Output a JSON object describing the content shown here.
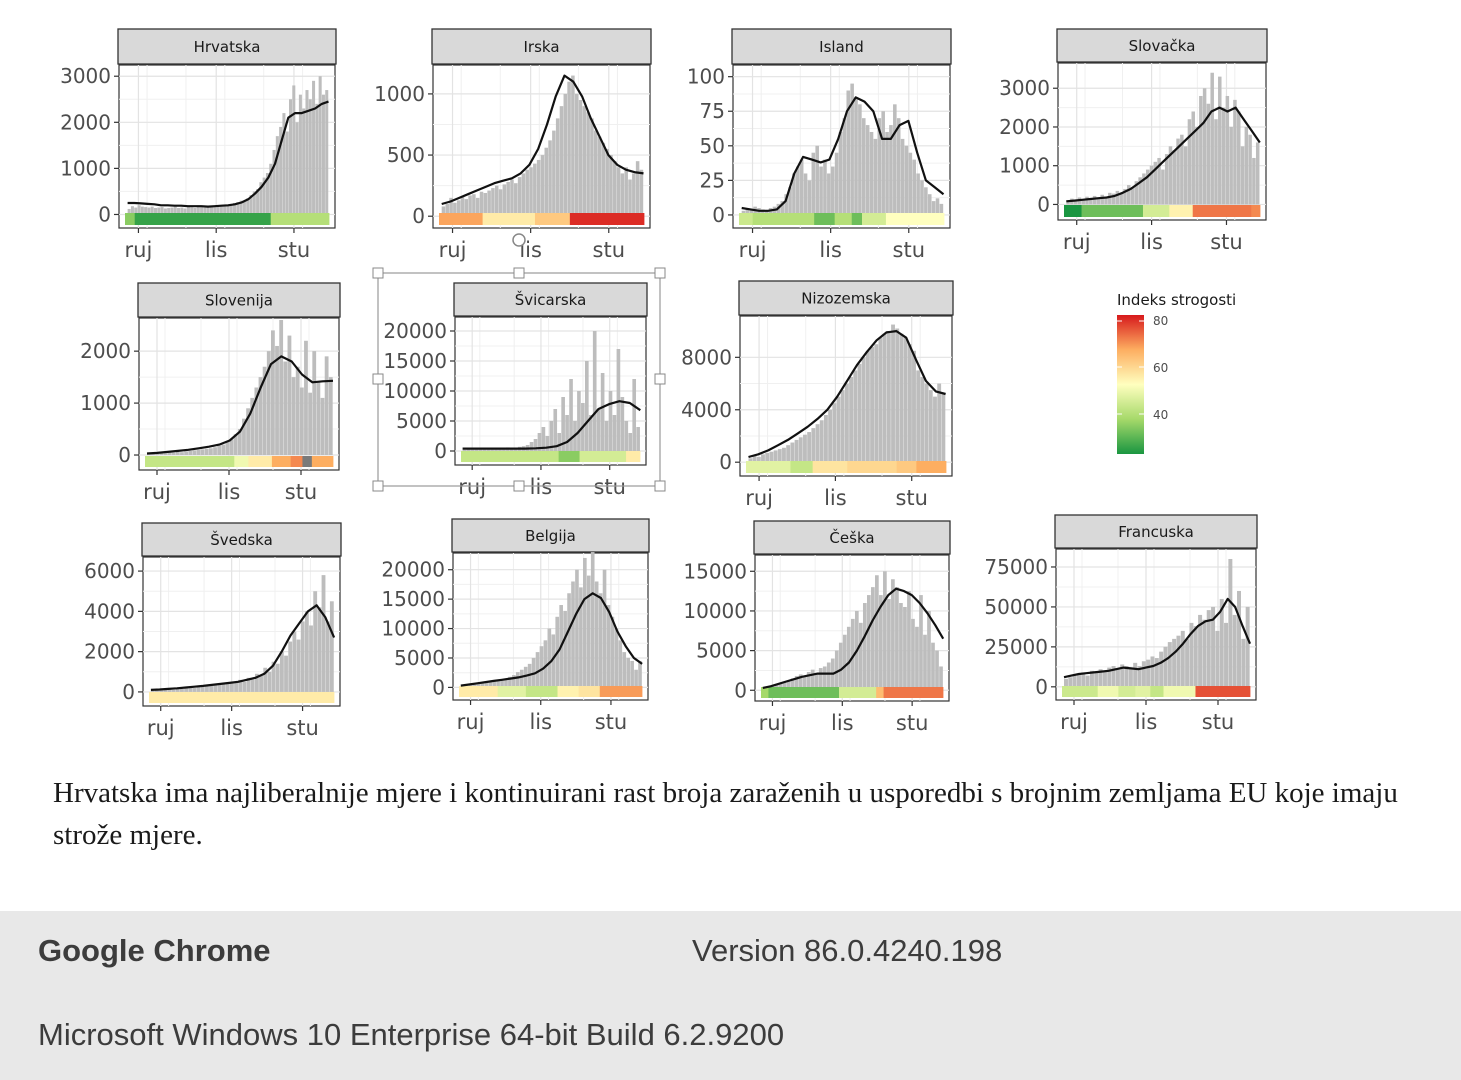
{
  "chart_data": [
    {
      "type": "bar",
      "country": "Hrvatska",
      "x_ticks": [
        "ruj",
        "lis",
        "stu"
      ],
      "y_ticks": [
        0,
        1000,
        2000,
        3000
      ],
      "ylim": [
        -250,
        3200
      ],
      "bars": [
        120,
        180,
        150,
        200,
        170,
        160,
        150,
        170,
        140,
        150,
        160,
        130,
        140,
        150,
        170,
        140,
        150,
        130,
        160,
        150,
        140,
        160,
        170,
        150,
        180,
        170,
        160,
        190,
        200,
        180,
        210,
        230,
        250,
        270,
        300,
        280,
        350,
        420,
        500,
        550,
        700,
        800,
        900,
        1100,
        1400,
        1700,
        1900,
        2200,
        1800,
        2500,
        2800,
        2000,
        2600,
        2300,
        2700,
        2500,
        2900,
        2400,
        3000,
        2600,
        2700
      ],
      "trend": [
        250,
        250,
        240,
        230,
        220,
        200,
        200,
        190,
        190,
        180,
        180,
        180,
        170,
        180,
        190,
        200,
        220,
        260,
        330,
        450,
        600,
        800,
        1100,
        1600,
        2100,
        2200,
        2200,
        2250,
        2300,
        2400,
        2450
      ],
      "stringency": [
        {
          "v": 38,
          "n": 2
        },
        {
          "v": 32,
          "n": 28
        },
        {
          "v": 42,
          "n": 12
        }
      ]
    },
    {
      "type": "bar",
      "country": "Irska",
      "x_ticks": [
        "ruj",
        "lis",
        "stu"
      ],
      "y_ticks": [
        0,
        500,
        1000
      ],
      "ylim": [
        -80,
        1220
      ],
      "bars": [
        80,
        100,
        150,
        110,
        130,
        160,
        140,
        170,
        180,
        150,
        200,
        190,
        210,
        230,
        250,
        220,
        260,
        280,
        300,
        270,
        320,
        350,
        380,
        400,
        430,
        460,
        500,
        560,
        620,
        700,
        800,
        900,
        1000,
        1100,
        1150,
        1000,
        950,
        900,
        850,
        800,
        700,
        650,
        600,
        550,
        500,
        450,
        400,
        350,
        400,
        300,
        350,
        450,
        380
      ],
      "trend": [
        100,
        120,
        150,
        180,
        210,
        240,
        270,
        290,
        310,
        350,
        420,
        550,
        750,
        980,
        1150,
        1100,
        980,
        800,
        650,
        500,
        420,
        380,
        360,
        350
      ],
      "stringency": [
        {
          "v": 65,
          "n": 10
        },
        {
          "v": 55,
          "n": 12
        },
        {
          "v": 60,
          "n": 8
        },
        {
          "v": 78,
          "n": 17
        }
      ]
    },
    {
      "type": "bar",
      "country": "Island",
      "x_ticks": [
        "ruj",
        "lis",
        "stu"
      ],
      "y_ticks": [
        0,
        25,
        50,
        75,
        100
      ],
      "ylim": [
        -8,
        107
      ],
      "bars": [
        3,
        5,
        4,
        6,
        5,
        4,
        3,
        5,
        6,
        8,
        10,
        15,
        20,
        30,
        35,
        40,
        30,
        25,
        45,
        50,
        35,
        40,
        30,
        35,
        45,
        60,
        70,
        90,
        95,
        85,
        80,
        70,
        65,
        60,
        55,
        70,
        75,
        60,
        65,
        80,
        70,
        55,
        50,
        45,
        40,
        30,
        25,
        20,
        15,
        10,
        12,
        8
      ],
      "trend": [
        5,
        4,
        3,
        3,
        4,
        10,
        30,
        42,
        40,
        38,
        40,
        55,
        75,
        85,
        82,
        75,
        55,
        55,
        65,
        68,
        45,
        25,
        20,
        15
      ],
      "stringency": [
        {
          "v": 45,
          "n": 4
        },
        {
          "v": 42,
          "n": 18
        },
        {
          "v": 36,
          "n": 6
        },
        {
          "v": 42,
          "n": 5
        },
        {
          "v": 36,
          "n": 3
        },
        {
          "v": 46,
          "n": 7
        },
        {
          "v": 52,
          "n": 17
        }
      ]
    },
    {
      "type": "bar",
      "country": "Slovačka",
      "x_ticks": [
        "ruj",
        "lis",
        "stu"
      ],
      "y_ticks": [
        0,
        1000,
        2000,
        3000
      ],
      "ylim": [
        -350,
        3600
      ],
      "bars": [
        100,
        150,
        120,
        180,
        140,
        200,
        160,
        220,
        180,
        250,
        200,
        300,
        280,
        350,
        300,
        400,
        500,
        450,
        600,
        700,
        800,
        900,
        1000,
        1100,
        1200,
        900,
        1300,
        1500,
        1400,
        1700,
        1800,
        1500,
        2200,
        2400,
        2000,
        2800,
        3000,
        2600,
        3400,
        2200,
        3300,
        2500,
        2800,
        2000,
        2700,
        2400,
        1500,
        2000,
        1800,
        1200,
        1600
      ],
      "trend": [
        80,
        100,
        120,
        140,
        160,
        180,
        220,
        300,
        400,
        550,
        700,
        900,
        1100,
        1300,
        1500,
        1700,
        1900,
        2100,
        2400,
        2500,
        2400,
        2500,
        2200,
        1900,
        1600
      ],
      "stringency": [
        {
          "v": 30,
          "n": 6
        },
        {
          "v": 36,
          "n": 21
        },
        {
          "v": 46,
          "n": 9
        },
        {
          "v": 54,
          "n": 8
        },
        {
          "v": 70,
          "n": 20
        },
        {
          "v": 68,
          "n": 3
        }
      ]
    },
    {
      "type": "bar",
      "country": "Slovenija",
      "x_ticks": [
        "ruj",
        "lis",
        "stu"
      ],
      "y_ticks": [
        0,
        1000,
        2000
      ],
      "ylim": [
        -250,
        2600
      ],
      "bars": [
        20,
        30,
        25,
        40,
        35,
        50,
        45,
        60,
        55,
        70,
        80,
        90,
        100,
        110,
        120,
        130,
        150,
        180,
        200,
        250,
        300,
        400,
        500,
        700,
        900,
        1100,
        1300,
        1500,
        1700,
        2000,
        2400,
        2100,
        2600,
        1800,
        2300,
        1500,
        1700,
        1300,
        2200,
        1200,
        2000,
        1400,
        1100,
        1900,
        1500
      ],
      "trend": [
        30,
        40,
        60,
        80,
        100,
        130,
        160,
        200,
        280,
        450,
        800,
        1300,
        1750,
        1900,
        1800,
        1550,
        1400,
        1420,
        1430
      ],
      "stringency": [
        {
          "v": 44,
          "n": 38
        },
        {
          "v": 50,
          "n": 6
        },
        {
          "v": 55,
          "n": 10
        },
        {
          "v": 64,
          "n": 8
        },
        {
          "v": 68,
          "n": 5
        },
        {
          "v": 100,
          "n": 4
        },
        {
          "v": 64,
          "n": 9
        }
      ]
    },
    {
      "type": "bar",
      "country": "Švicarska",
      "x_ticks": [
        "ruj",
        "lis",
        "stu"
      ],
      "y_ticks": [
        0,
        5000,
        10000,
        15000,
        20000
      ],
      "ylim": [
        -2000,
        22000
      ],
      "bars": [
        200,
        300,
        250,
        400,
        350,
        300,
        400,
        350,
        500,
        450,
        400,
        600,
        550,
        500,
        700,
        800,
        1000,
        1500,
        2000,
        3000,
        4000,
        2500,
        5000,
        7000,
        3000,
        9000,
        6000,
        12000,
        5000,
        10000,
        8000,
        15000,
        6000,
        20000,
        7000,
        13000,
        5000,
        10000,
        6000,
        17000,
        9000,
        5000,
        3000,
        12000,
        4000
      ],
      "trend": [
        400,
        400,
        400,
        400,
        400,
        400,
        400,
        450,
        550,
        800,
        1500,
        3000,
        5000,
        7000,
        7800,
        8300,
        8000,
        6800
      ],
      "stringency": [
        {
          "v": 44,
          "n": 42
        },
        {
          "v": 38,
          "n": 9
        },
        {
          "v": 46,
          "n": 20
        },
        {
          "v": 55,
          "n": 6
        }
      ]
    },
    {
      "type": "bar",
      "country": "Nizozemska",
      "x_ticks": [
        "ruj",
        "lis",
        "stu"
      ],
      "y_ticks": [
        0,
        4000,
        8000
      ],
      "ylim": [
        -900,
        11000
      ],
      "bars": [
        300,
        500,
        400,
        600,
        700,
        800,
        900,
        1000,
        1100,
        1300,
        1500,
        1700,
        1900,
        2100,
        2300,
        2600,
        2900,
        3200,
        3600,
        4000,
        4500,
        5000,
        5500,
        6000,
        6500,
        7000,
        7500,
        8000,
        8500,
        8800,
        9000,
        9500,
        9800,
        10000,
        10500,
        10200,
        9800,
        9500,
        9000,
        8500,
        7000,
        6500,
        6000,
        5500,
        5000,
        6000,
        5200
      ],
      "trend": [
        400,
        600,
        900,
        1300,
        1700,
        2200,
        2700,
        3300,
        4000,
        5000,
        6200,
        7400,
        8400,
        9300,
        9900,
        10000,
        9500,
        7800,
        6200,
        5400,
        5200
      ],
      "stringency": [
        {
          "v": 48,
          "n": 18
        },
        {
          "v": 44,
          "n": 9
        },
        {
          "v": 56,
          "n": 14
        },
        {
          "v": 58,
          "n": 20
        },
        {
          "v": 60,
          "n": 8
        },
        {
          "v": 64,
          "n": 12
        }
      ]
    },
    {
      "type": "bar",
      "country": "Švedska",
      "x_ticks": [
        "ruj",
        "lis",
        "stu"
      ],
      "y_ticks": [
        0,
        2000,
        4000,
        6000
      ],
      "ylim": [
        -600,
        6600
      ],
      "bars": [
        50,
        100,
        80,
        150,
        120,
        100,
        200,
        150,
        180,
        250,
        200,
        300,
        250,
        350,
        300,
        400,
        350,
        450,
        400,
        500,
        450,
        600,
        500,
        700,
        600,
        900,
        800,
        1200,
        1000,
        1500,
        1400,
        2000,
        1800,
        2500,
        3000,
        2600,
        3500,
        4000,
        3300,
        5000,
        4200,
        5800,
        3500,
        4500
      ],
      "trend": [
        100,
        120,
        150,
        180,
        220,
        260,
        300,
        350,
        400,
        450,
        500,
        600,
        700,
        900,
        1300,
        2000,
        2800,
        3400,
        4000,
        4300,
        3700,
        2700
      ],
      "stringency": [
        {
          "v": 55,
          "n": 100
        }
      ]
    },
    {
      "type": "bar",
      "country": "Belgija",
      "x_ticks": [
        "ruj",
        "lis",
        "stu"
      ],
      "y_ticks": [
        0,
        5000,
        10000,
        15000,
        20000
      ],
      "ylim": [
        -1800,
        22500
      ],
      "bars": [
        200,
        300,
        400,
        500,
        600,
        700,
        800,
        900,
        1000,
        1100,
        1200,
        1500,
        1800,
        2100,
        2600,
        3000,
        3500,
        4000,
        5000,
        6000,
        7000,
        8000,
        10000,
        9000,
        12000,
        14000,
        13000,
        16000,
        18000,
        20000,
        17000,
        22000,
        19000,
        23000,
        18000,
        16000,
        20000,
        14000,
        12000,
        10000,
        8000,
        6000,
        5000,
        4500,
        3000,
        4500
      ],
      "trend": [
        300,
        500,
        700,
        900,
        1100,
        1300,
        1500,
        1700,
        2000,
        2400,
        3200,
        4500,
        6500,
        9500,
        12500,
        15000,
        16000,
        15200,
        12800,
        9500,
        7000,
        5000,
        4000
      ],
      "stringency": [
        {
          "v": 55,
          "n": 11
        },
        {
          "v": 48,
          "n": 8
        },
        {
          "v": 44,
          "n": 9
        },
        {
          "v": 54,
          "n": 6
        },
        {
          "v": 56,
          "n": 6
        },
        {
          "v": 66,
          "n": 12
        }
      ]
    },
    {
      "type": "bar",
      "country": "Češka",
      "x_ticks": [
        "ruj",
        "lis",
        "stu"
      ],
      "y_ticks": [
        0,
        5000,
        10000,
        15000
      ],
      "ylim": [
        -1100,
        16800
      ],
      "bars": [
        200,
        400,
        500,
        700,
        900,
        1000,
        1200,
        1500,
        1800,
        2000,
        1700,
        2300,
        2600,
        2200,
        2800,
        3000,
        3500,
        4000,
        5000,
        6000,
        7000,
        8000,
        9000,
        10000,
        8500,
        11000,
        12000,
        13000,
        14500,
        12000,
        15000,
        11500,
        14000,
        13000,
        11000,
        10500,
        12500,
        9000,
        8000,
        12000,
        7000,
        10000,
        6000,
        5000,
        3000
      ],
      "trend": [
        300,
        500,
        800,
        1100,
        1400,
        1700,
        1900,
        2100,
        2100,
        2100,
        2600,
        3500,
        5000,
        6800,
        8800,
        10500,
        12000,
        12800,
        12500,
        12000,
        11000,
        9700,
        8200,
        6500
      ],
      "stringency": [
        {
          "v": 40,
          "n": 4
        },
        {
          "v": 36,
          "n": 38
        },
        {
          "v": 46,
          "n": 20
        },
        {
          "v": 62,
          "n": 4
        },
        {
          "v": 70,
          "n": 32
        }
      ]
    },
    {
      "type": "bar",
      "country": "Francuska",
      "x_ticks": [
        "ruj",
        "lis",
        "stu"
      ],
      "y_ticks": [
        0,
        25000,
        50000,
        75000
      ],
      "ylim": [
        -7000,
        85000
      ],
      "bars": [
        5000,
        6000,
        7000,
        8000,
        9000,
        7000,
        10000,
        9000,
        11000,
        10000,
        12000,
        13000,
        11000,
        14000,
        13000,
        12000,
        15000,
        13000,
        16000,
        17000,
        19000,
        18000,
        22000,
        25000,
        28000,
        30000,
        32000,
        35000,
        30000,
        40000,
        38000,
        45000,
        42000,
        48000,
        50000,
        35000,
        55000,
        40000,
        80000,
        45000,
        60000,
        30000,
        50000
      ],
      "trend": [
        6000,
        7000,
        8000,
        8500,
        9000,
        9500,
        10000,
        11000,
        12000,
        11500,
        11000,
        12000,
        13000,
        15000,
        18000,
        22000,
        27000,
        33000,
        38000,
        41000,
        42000,
        47000,
        55000,
        50000,
        38000,
        27000
      ],
      "stringency": [
        {
          "v": 45,
          "n": 19
        },
        {
          "v": 50,
          "n": 11
        },
        {
          "v": 46,
          "n": 9
        },
        {
          "v": 48,
          "n": 8
        },
        {
          "v": 44,
          "n": 7
        },
        {
          "v": 50,
          "n": 17
        },
        {
          "v": 74,
          "n": 29
        }
      ]
    }
  ],
  "legend": {
    "title": "Indeks strogosti",
    "labels": [
      "80",
      "60",
      "40"
    ],
    "colors": [
      "#d7191c",
      "#fdae61",
      "#ffffbf",
      "#a6d96a",
      "#1a9641"
    ]
  },
  "caption": "Hrvatska ima najliberalnije mjere i kontinuirani rast broja zaraženih u usporedbi s brojnim zemljama EU koje imaju strože mjere.",
  "info": {
    "browser_name": "Google Chrome",
    "browser_version": "Version 86.0.4240.198",
    "os": "Microsoft Windows 10 Enterprise 64-bit Build 6.2.9200"
  }
}
